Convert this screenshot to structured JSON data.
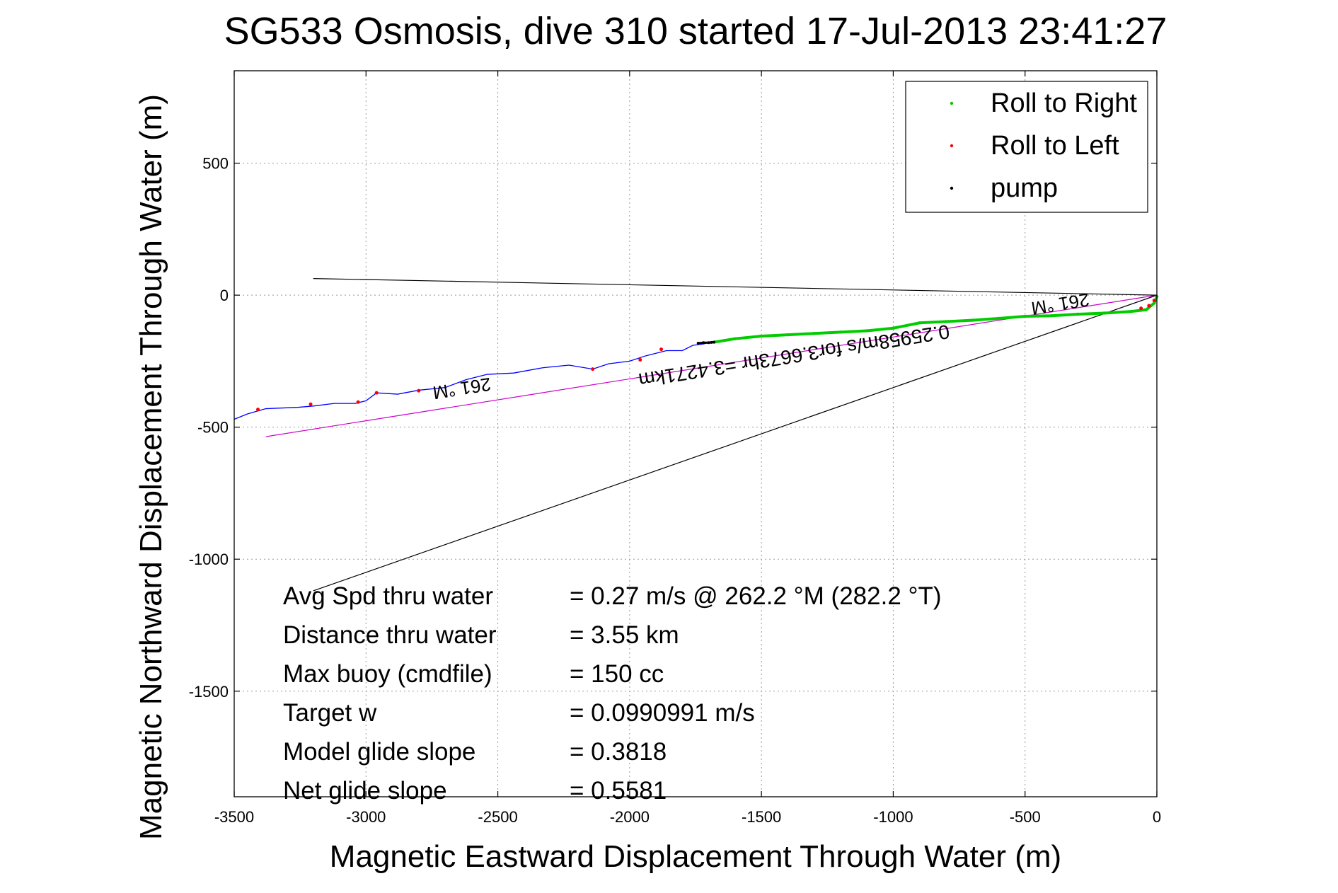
{
  "chart_data": {
    "type": "scatter",
    "title": "SG533 Osmosis, dive 310 started 17-Jul-2013 23:41:27",
    "xlabel": "Magnetic Eastward Displacement Through Water (m)",
    "ylabel": "Magnetic Northward Displacement Through Water (m)",
    "xlim": [
      -3500,
      0
    ],
    "ylim": [
      -1900,
      850
    ],
    "xticks": [
      -3500,
      -3000,
      -2500,
      -2000,
      -1500,
      -1000,
      -500,
      0
    ],
    "yticks": [
      500,
      0,
      -500,
      -1000,
      -1500
    ],
    "xtick_labels": [
      "-3500",
      "-3000",
      "-2500",
      "-2000",
      "-1500",
      "-1000",
      "-500",
      "0"
    ],
    "ytick_labels": [
      "500",
      "0",
      "-500",
      "-1000",
      "-1500"
    ],
    "grid": true,
    "legend_position": "top-right",
    "legend": [
      {
        "label": "Roll to Right",
        "color": "#00cc00"
      },
      {
        "label": "Roll to Left",
        "color": "#ff0000"
      },
      {
        "label": "pump",
        "color": "#000000"
      }
    ],
    "series": [
      {
        "name": "track",
        "color": "#0000ff",
        "x": [
          -3500,
          -3450,
          -3380,
          -3260,
          -3200,
          -3120,
          -3040,
          -3000,
          -2960,
          -2880,
          -2800,
          -2700,
          -2620,
          -2540,
          -2440,
          -2330,
          -2230,
          -2140,
          -2080,
          -2000,
          -1940,
          -1860,
          -1800,
          -1760,
          -1720,
          -1700
        ],
        "y": [
          -470,
          -450,
          -430,
          -425,
          -420,
          -410,
          -410,
          -400,
          -370,
          -375,
          -360,
          -350,
          -320,
          -300,
          -295,
          -275,
          -265,
          -280,
          -260,
          -250,
          -230,
          -210,
          -210,
          -190,
          -185,
          -180
        ]
      },
      {
        "name": "Roll to Right",
        "color": "#00cc00",
        "x": [
          -1680,
          -1600,
          -1500,
          -1400,
          -1300,
          -1200,
          -1100,
          -1000,
          -900,
          -800,
          -700,
          -600,
          -500,
          -400,
          -300,
          -200,
          -100,
          -40,
          -10,
          0
        ],
        "y": [
          -178,
          -165,
          -155,
          -150,
          -145,
          -140,
          -135,
          -125,
          -105,
          -100,
          -95,
          -88,
          -80,
          -78,
          -72,
          -68,
          -62,
          -55,
          -30,
          -5
        ]
      },
      {
        "name": "Roll to Left",
        "color": "#ff0000",
        "x": [
          -3410,
          -3210,
          -3030,
          -2960,
          -2800,
          -2140,
          -1960,
          -1880,
          -60,
          -30,
          -10
        ],
        "y": [
          -433,
          -413,
          -405,
          -370,
          -362,
          -280,
          -245,
          -205,
          -50,
          -40,
          -20
        ]
      },
      {
        "name": "pump",
        "color": "#000000",
        "x": [
          -1740,
          -1720,
          -1700,
          -1690,
          -1680
        ],
        "y": [
          -182,
          -180,
          -180,
          -179,
          -178
        ]
      }
    ],
    "lines": [
      {
        "name": "magnetic course line",
        "color": "#000000",
        "x": [
          -3200,
          0
        ],
        "y": [
          63,
          0
        ]
      },
      {
        "name": "bearing line",
        "color": "#000000",
        "x": [
          -3200,
          0
        ],
        "y": [
          -1120,
          0
        ]
      },
      {
        "name": "net transit line",
        "color": "#cc00cc",
        "x": [
          -3380,
          0
        ],
        "y": [
          -536,
          0
        ]
      }
    ],
    "annotations": [
      {
        "text": "261 °M",
        "x": -2640,
        "y": -330,
        "upside_down": true
      },
      {
        "text": "261 °M",
        "x": -370,
        "y": -10,
        "upside_down": true
      },
      {
        "text": "0.25958m/s for3.6673hr =3.4271km",
        "x": -1380,
        "y": -205,
        "upside_down": true
      }
    ],
    "stats": [
      {
        "label": "Avg Spd thru water",
        "value": "=  0.27 m/s @ 262.2 °M (282.2 °T)"
      },
      {
        "label": "Distance thru water",
        "value": "=  3.55 km"
      },
      {
        "label": "Max buoy (cmdfile)",
        "value": "= 150 cc"
      },
      {
        "label": "Target w",
        "value": "= 0.0990991 m/s"
      },
      {
        "label": "Model glide slope",
        "value": "= 0.3818"
      },
      {
        "label": "Net glide slope",
        "value": "= 0.5581"
      }
    ]
  }
}
